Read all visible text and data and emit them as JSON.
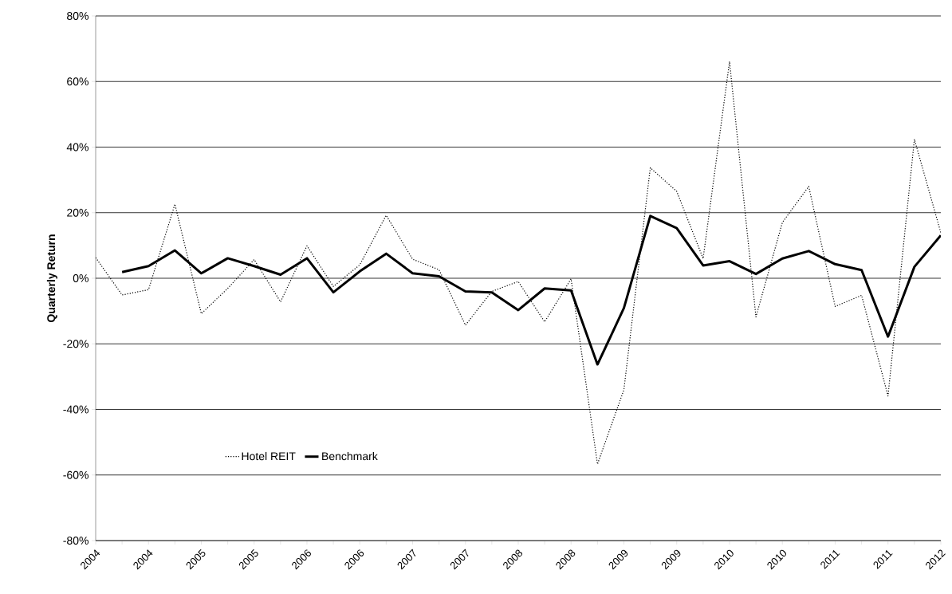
{
  "chart_data": {
    "type": "line",
    "ylabel": "Quarterly Return",
    "categories": [
      "2004",
      null,
      "2004",
      null,
      "2005",
      null,
      "2005",
      null,
      "2006",
      null,
      "2006",
      null,
      "2007",
      null,
      "2007",
      null,
      "2008",
      null,
      "2008",
      null,
      "2009",
      null,
      "2009",
      null,
      "2010",
      null,
      "2010",
      null,
      "2011",
      null,
      "2011",
      null,
      "2012"
    ],
    "series": [
      {
        "name": "Hotel REIT",
        "color": "#000000",
        "line_style": "dotted",
        "values": [
          6.3,
          -5.1,
          -3.5,
          22.6,
          -10.8,
          -3.1,
          5.7,
          -7.2,
          9.9,
          -2.5,
          4.1,
          19.2,
          5.8,
          2.6,
          -14.3,
          -4,
          -1,
          -13.3,
          -0.2,
          -56.7,
          -34,
          33.7,
          26.5,
          6,
          66.1,
          -11.8,
          17,
          28,
          -8.6,
          -5.2,
          -35.9,
          42.4,
          13.9
        ]
      },
      {
        "name": "Benchmark",
        "color": "#000000",
        "line_style": "solid",
        "values": [
          null,
          1.9,
          3.7,
          8.5,
          1.5,
          6.1,
          3.7,
          1.1,
          6.1,
          -4.3,
          2.1,
          7.5,
          1.5,
          0.6,
          -4,
          -4.3,
          -9.7,
          -3.1,
          -3.7,
          -26.3,
          -9.1,
          19,
          15.3,
          3.9,
          5.2,
          1.3,
          6,
          8.3,
          4.3,
          2.5,
          -17.8,
          3.5,
          13.1
        ]
      }
    ],
    "ylim": [
      -80,
      80
    ],
    "yticks": [
      {
        "value": -80,
        "label": "-80%"
      },
      {
        "value": -60,
        "label": "-60%"
      },
      {
        "value": -40,
        "label": "-40%"
      },
      {
        "value": -20,
        "label": "-20%"
      },
      {
        "value": 0,
        "label": "0%"
      },
      {
        "value": 20,
        "label": "20%"
      },
      {
        "value": 40,
        "label": "40%"
      },
      {
        "value": 60,
        "label": "60%"
      },
      {
        "value": 80,
        "label": "80%"
      }
    ],
    "grid": "y",
    "legend": "bottom left",
    "marker": "none"
  }
}
